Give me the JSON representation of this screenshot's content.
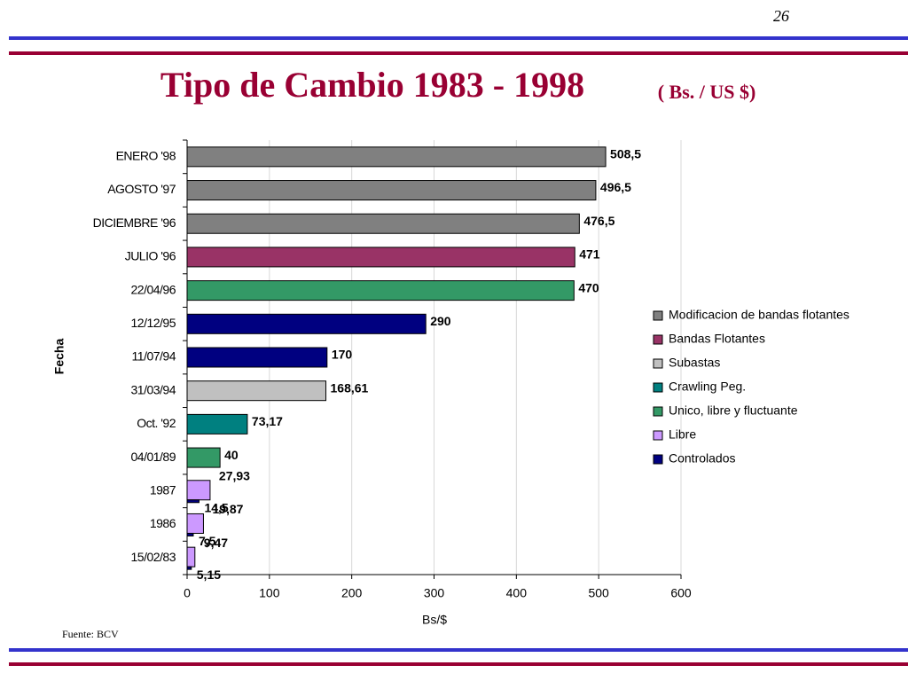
{
  "page_number": "26",
  "chart_data": {
    "type": "bar",
    "orientation": "horizontal",
    "title": "Tipo de Cambio 1983 - 1998",
    "subtitle": "( Bs. / US $)",
    "x_label": "Bs/$",
    "y_label": "Fecha",
    "source": "Fuente: BCV",
    "categories": [
      "ENERO '98",
      "AGOSTO '97",
      "DICIEMBRE '96",
      "JULIO '96",
      "22/04/96",
      "12/12/95",
      "11/07/94",
      "31/03/94",
      "Oct. '92",
      "04/01/89",
      "1987",
      "1986",
      "15/02/83"
    ],
    "xlim": [
      0,
      600
    ],
    "xticks": [
      0,
      100,
      200,
      300,
      400,
      500,
      600
    ],
    "grid": true,
    "legend": "right",
    "series": [
      {
        "name": "Modificacion de bandas flotantes",
        "color": "#808080",
        "values": [
          508.5,
          496.5,
          476.5,
          null,
          null,
          null,
          null,
          null,
          null,
          null,
          null,
          null,
          null
        ],
        "value_labels": [
          "508,5",
          "496,5",
          "476,5",
          null,
          null,
          null,
          null,
          null,
          null,
          null,
          null,
          null,
          null
        ]
      },
      {
        "name": "Bandas Flotantes",
        "color": "#993366",
        "values": [
          null,
          null,
          null,
          471,
          null,
          null,
          null,
          null,
          null,
          null,
          null,
          null,
          null
        ]
      },
      {
        "name": "Subastas",
        "color": "#c0c0c0",
        "values": [
          null,
          null,
          null,
          null,
          null,
          null,
          null,
          168.61,
          null,
          null,
          null,
          null,
          null
        ],
        "value_labels": [
          null,
          null,
          null,
          null,
          null,
          null,
          null,
          "168,61",
          null,
          null,
          null,
          null,
          null
        ]
      },
      {
        "name": "Crawling Peg.",
        "color": "#008080",
        "values": [
          null,
          null,
          null,
          null,
          null,
          null,
          null,
          null,
          73.17,
          null,
          null,
          null,
          null
        ],
        "value_labels": [
          null,
          null,
          null,
          null,
          null,
          null,
          null,
          null,
          "73,17",
          null,
          null,
          null,
          null
        ]
      },
      {
        "name": "Unico, libre y fluctuante",
        "color": "#339966",
        "values": [
          null,
          null,
          null,
          null,
          470,
          null,
          null,
          null,
          null,
          40,
          null,
          null,
          null
        ]
      },
      {
        "name": "Libre",
        "color": "#cc99ff",
        "values": [
          null,
          null,
          null,
          null,
          null,
          null,
          null,
          null,
          null,
          null,
          27.93,
          19.87,
          9.47
        ],
        "value_labels": [
          null,
          null,
          null,
          null,
          null,
          null,
          null,
          null,
          null,
          null,
          "27,93",
          "19,87",
          "9,47"
        ]
      },
      {
        "name": "Controlados",
        "color": "#000080",
        "values": [
          null,
          null,
          null,
          null,
          null,
          290,
          170,
          null,
          null,
          null,
          14.5,
          7.5,
          5.15
        ],
        "value_labels": [
          null,
          null,
          null,
          null,
          null,
          null,
          null,
          null,
          null,
          null,
          "14,5",
          "7,5",
          "5,15"
        ]
      }
    ]
  }
}
